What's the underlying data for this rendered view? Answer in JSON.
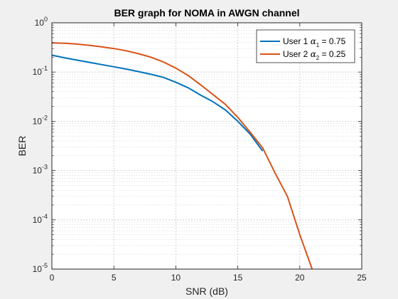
{
  "chart_data": {
    "type": "line",
    "title": "BER graph for NOMA in AWGN channel",
    "xlabel": "SNR (dB)",
    "ylabel": "BER",
    "xlim": [
      0,
      25
    ],
    "ylim": [
      1e-05,
      1
    ],
    "yscale": "log",
    "xticks": [
      "0",
      "5",
      "10",
      "15",
      "20",
      "25"
    ],
    "yticks": [
      {
        "base": "10",
        "exp": "0"
      },
      {
        "base": "10",
        "exp": "-1"
      },
      {
        "base": "10",
        "exp": "-2"
      },
      {
        "base": "10",
        "exp": "-3"
      },
      {
        "base": "10",
        "exp": "-4"
      },
      {
        "base": "10",
        "exp": "-5"
      }
    ],
    "grid": true,
    "minor_grid": true,
    "legend_position": "top-right",
    "series": [
      {
        "name": "User 1 α1 = 0.75",
        "label_parts": {
          "prefix": "User 1 ",
          "symbol": "α",
          "sub": "1",
          "suffix": " = 0.75"
        },
        "color": "#0072BD",
        "x": [
          0,
          1,
          2,
          3,
          4,
          5,
          6,
          7,
          8,
          9,
          10,
          11,
          12,
          13,
          14,
          15,
          16,
          17
        ],
        "y": [
          0.22,
          0.195,
          0.175,
          0.158,
          0.142,
          0.128,
          0.115,
          0.102,
          0.09,
          0.078,
          0.062,
          0.048,
          0.034,
          0.025,
          0.017,
          0.01,
          0.0055,
          0.0025
        ]
      },
      {
        "name": "User 2 α2 = 0.25",
        "label_parts": {
          "prefix": "User 2 ",
          "symbol": "α",
          "sub": "2",
          "suffix": " = 0.25"
        },
        "color": "#D95319",
        "x": [
          0,
          1,
          2,
          3,
          4,
          5,
          6,
          7,
          8,
          9,
          10,
          11,
          12,
          13,
          14,
          15,
          16,
          17,
          18,
          19,
          20,
          21
        ],
        "y": [
          0.39,
          0.385,
          0.37,
          0.35,
          0.325,
          0.3,
          0.27,
          0.235,
          0.2,
          0.16,
          0.12,
          0.085,
          0.055,
          0.035,
          0.022,
          0.012,
          0.006,
          0.0029,
          0.0009,
          0.0003,
          5e-05,
          1e-05
        ]
      }
    ]
  }
}
